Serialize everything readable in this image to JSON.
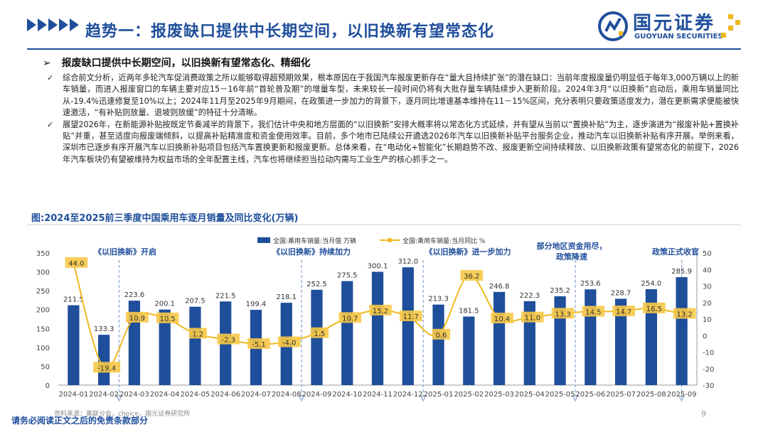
{
  "header": {
    "title": "趋势一：报废缺口提供中长期空间，以旧换新有望常态化",
    "logo_name": "国元证券",
    "logo_en": "GUOYUAN SECURITIES"
  },
  "subtitle": "报废缺口提供中长期空间，以旧换新有望常态化、精细化",
  "subtitle_marker": "➢",
  "bullets": [
    "综合前文分析，近两年多轮汽车促消费政策之所以能够取得超预期效果，根本原因在于我国汽车报废更新存在“量大且持续扩张”的潜在缺口：当前年度报废量仍明显低于每年3,000万辆以上的新车销量，而进入报废窗口的车辆主要对应15－16年前“首轮普及期”的增量车型，未来较长一段时间仍将有大批存量车辆陆续步入更新阶段。2024年3月“以旧换新”启动后，乘用车销量同比从-19.4%迅速修复至10%以上；2024年11月至2025年9月期间，在政策进一步加力的背景下，逐月同比增速基本维持在11－15%区间，充分表明只要政策适度发力，潜在更新需求便能被快速激活，“有补贴则放量、退坡则放缓”的特征十分清晰。",
    "展望2026年，在新能源补贴按既定节奏减半的背景下，我们估计中央和地方层面的“以旧换新”安排大概率将以常态化方式延续，并有望从当前以“置换补贴”为主，逐步演进为“报废补贴+置换补贴”并重，甚至适度向报废端倾斜，以提高补贴精准度和资金使用效率。目前，多个地市已陆续公开遴选2026年汽车以旧换新补贴平台服务企业，推动汽车以旧换新补贴有序开展。举例来看，深圳市已逐步有序开展汽车以旧换新补贴项目包括汽车置换更新和报废更新。总体来看，在“电动化+智能化”长期趋势不改、报废更新空间持续释放、以旧换新政策有望常态化的前提下，2026年汽车板块仍有望被维持为权益市场的全年配置主线，汽车也将继续担当拉动内需与工业生产的核心抓手之一。"
  ],
  "bullet_marker": "✓",
  "figure_title": "图:2024至2025前三季度中国乘用车逐月销量及同比变化(万辆)",
  "chart_data": {
    "type": "bar+line",
    "categories": [
      "2024-01",
      "2024-02",
      "2024-03",
      "2024-04",
      "2024-05",
      "2024-06",
      "2024-07",
      "2024-08",
      "2024-09",
      "2024-10",
      "2024-11",
      "2024-12",
      "2025-01",
      "2025-02",
      "2025-03",
      "2025-04",
      "2025-05",
      "2025-06",
      "2025-07",
      "2025-08",
      "2025-09"
    ],
    "series": [
      {
        "name": "全国:乘用车销量:当月值 万辆",
        "type": "bar",
        "axis": "left",
        "color": "#1f4e9b",
        "values": [
          211.5,
          133.3,
          223.6,
          200.1,
          207.5,
          221.5,
          199.4,
          218.1,
          252.5,
          275.5,
          300.1,
          312.0,
          213.3,
          181.5,
          246.8,
          222.3,
          235.2,
          253.6,
          228.7,
          254.0,
          285.9
        ]
      },
      {
        "name": "全国:乘用车销量:当月同比 %",
        "type": "line",
        "axis": "right",
        "color": "#f0b81e",
        "values": [
          44.0,
          -19.4,
          10.9,
          10.5,
          1.2,
          -2.3,
          -5.1,
          -4.0,
          1.5,
          10.7,
          15.2,
          11.7,
          0.6,
          36.2,
          10.4,
          11.0,
          13.3,
          14.5,
          14.7,
          16.5,
          13.2
        ]
      }
    ],
    "bar_labels": [
      "211.5",
      "133.3",
      "223.6",
      "200.1",
      "207.5",
      "221.5",
      "199.4",
      "218.1",
      "252.5",
      "275.5",
      "300.1",
      "312.0",
      "213.3",
      "181.5",
      "246.8",
      "222.3",
      "235.2",
      "253.6",
      "228.7",
      "254.0",
      "285.9"
    ],
    "line_labels": [
      "44.0",
      "-19.4",
      "10.9",
      "10.5",
      "1.2",
      "-2.3",
      "-5.1",
      "-4.0",
      "1.5",
      "10.7",
      "15.2",
      "11.7",
      "0.6",
      "36.2",
      "10.4",
      "11.0",
      "13.3",
      "14.5",
      "14.7",
      "16.5",
      "13.2"
    ],
    "y_left": {
      "min": 0,
      "max": 350,
      "ticks": [
        "0",
        "50",
        "100",
        "150",
        "200",
        "250",
        "300",
        "350"
      ]
    },
    "y_right": {
      "min": -30,
      "max": 50,
      "ticks": [
        "-30",
        "-20",
        "-10",
        "0",
        "10",
        "20",
        "30",
        "40",
        "50"
      ]
    },
    "legend_position": "top-center",
    "annotations": [
      {
        "text": "《以旧换新》开启",
        "category_index": 2
      },
      {
        "text": "《以旧换新》持续加力",
        "category_index": 8
      },
      {
        "text": "《以旧换新》进一步加力",
        "category_index": 12
      },
      {
        "text": "部分地区资金用尽，\n政策降速",
        "category_index": 17
      },
      {
        "text": "政策正式收官",
        "category_index": 20
      }
    ]
  },
  "source": "资料来源：乘联分会，choice，国元证券研究所",
  "disclaimer": "请务必阅读正文之后的免责条款部分",
  "page_number": "9"
}
